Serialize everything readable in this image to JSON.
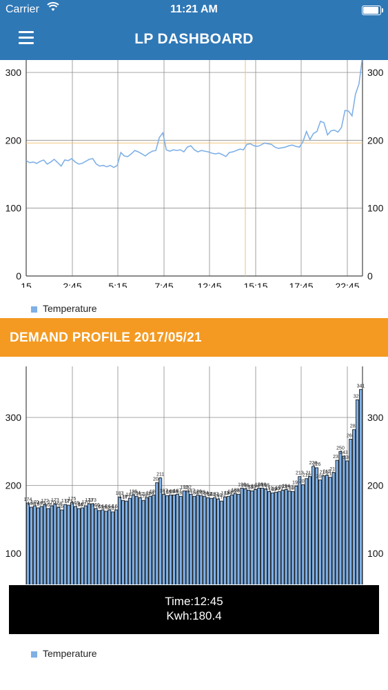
{
  "status_bar": {
    "carrier": "Carrier",
    "time": "11:21 AM"
  },
  "header": {
    "title": "LP DASHBOARD"
  },
  "section": {
    "title": "DEMAND PROFILE 2017/05/21"
  },
  "tooltip": {
    "time": "Time:12:45",
    "kwh": "Kwh:180.4"
  },
  "icons": {
    "menu": "hamburger-menu-icon",
    "wifi": "wifi-icon",
    "battery": "battery-icon"
  },
  "colors": {
    "header": "#2f78b6",
    "section": "#f49a22",
    "series": "#7fb0e6"
  },
  "chart_data": [
    {
      "type": "line",
      "x_tick_labels": [
        "15",
        "2:45",
        "5:15",
        "7:45",
        "12:45",
        "15:15",
        "17:45",
        "22:45"
      ],
      "y_ticks": [
        0,
        100,
        200,
        300
      ],
      "ylim": [
        0,
        300
      ],
      "legend": "Temperature",
      "legend_position": "bottom-left",
      "grid": true,
      "series": [
        {
          "name": "Temperature",
          "values": [
            170,
            167,
            168,
            166,
            169,
            171,
            165,
            168,
            172,
            167,
            162,
            171,
            170,
            173,
            168,
            165,
            166,
            169,
            172,
            173,
            165,
            162,
            163,
            161,
            163,
            160,
            163,
            182,
            177,
            176,
            180,
            185,
            183,
            180,
            177,
            181,
            184,
            185,
            204,
            211,
            186,
            184,
            186,
            185,
            186,
            183,
            190,
            192,
            186,
            183,
            185,
            184,
            183,
            181,
            180,
            181,
            179,
            176,
            182,
            183,
            185,
            187,
            186,
            194,
            195,
            192,
            191,
            193,
            196,
            195,
            194,
            190,
            188,
            189,
            190,
            192,
            193,
            191,
            190,
            198,
            213,
            201,
            210,
            213,
            228,
            226,
            208,
            214,
            215,
            212,
            219,
            244,
            243,
            236,
            268,
            283,
            341
          ]
        }
      ]
    },
    {
      "type": "bar",
      "y_ticks": [
        100,
        200,
        300
      ],
      "ylim": [
        0,
        350
      ],
      "legend": "Temperature",
      "legend_position": "bottom-left",
      "grid": true,
      "series": [
        {
          "name": "Temperature",
          "values": [
            174,
            168,
            170,
            167,
            169,
            172,
            166,
            170,
            173,
            168,
            164,
            172,
            171,
            175,
            169,
            166,
            167,
            170,
            173,
            173,
            166,
            163,
            164,
            162,
            164,
            161,
            164,
            183,
            178,
            177,
            181,
            186,
            184,
            182,
            178,
            182,
            184,
            186,
            204,
            211,
            187,
            185,
            186,
            186,
            187,
            184,
            192,
            192,
            187,
            184,
            186,
            185,
            184,
            182,
            181,
            182,
            180,
            177,
            183,
            184,
            186,
            188,
            187,
            196,
            195,
            193,
            192,
            194,
            196,
            196,
            195,
            191,
            189,
            190,
            191,
            193,
            194,
            192,
            191,
            199,
            213,
            201,
            210,
            213,
            228,
            226,
            208,
            214,
            215,
            212,
            219,
            237,
            250,
            243,
            236,
            268,
            282,
            326,
            341
          ]
        }
      ]
    }
  ]
}
